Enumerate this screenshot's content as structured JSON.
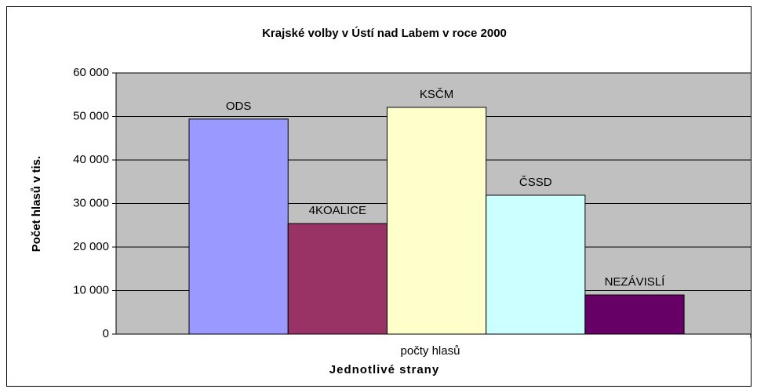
{
  "chart_data": {
    "type": "bar",
    "title": "Krajské volby v Ústí nad Labem v roce 2000",
    "x_label": "Jednotlivé strany",
    "y_label": "Počet hlasů v tis.",
    "categories": [
      "počty hlasů"
    ],
    "series": [
      {
        "name": "ODS",
        "color": "#9999ff",
        "values": [
          49400
        ]
      },
      {
        "name": "4KOALICE",
        "color": "#993366",
        "values": [
          25400
        ]
      },
      {
        "name": "KSČM",
        "color": "#ffffcc",
        "values": [
          52100
        ]
      },
      {
        "name": "ČSSD",
        "color": "#ccffff",
        "values": [
          31900
        ]
      },
      {
        "name": "NEZÁVISLÍ",
        "color": "#660066",
        "values": [
          9000
        ]
      }
    ],
    "ylim": [
      0,
      60000
    ],
    "yticks": [
      {
        "value": 0,
        "label": "0"
      },
      {
        "value": 10000,
        "label": "10 000"
      },
      {
        "value": 20000,
        "label": "20 000"
      },
      {
        "value": 30000,
        "label": "30 000"
      },
      {
        "value": 40000,
        "label": "40 000"
      },
      {
        "value": 50000,
        "label": "50 000"
      },
      {
        "value": 60000,
        "label": "60 000"
      }
    ],
    "grid": true
  }
}
